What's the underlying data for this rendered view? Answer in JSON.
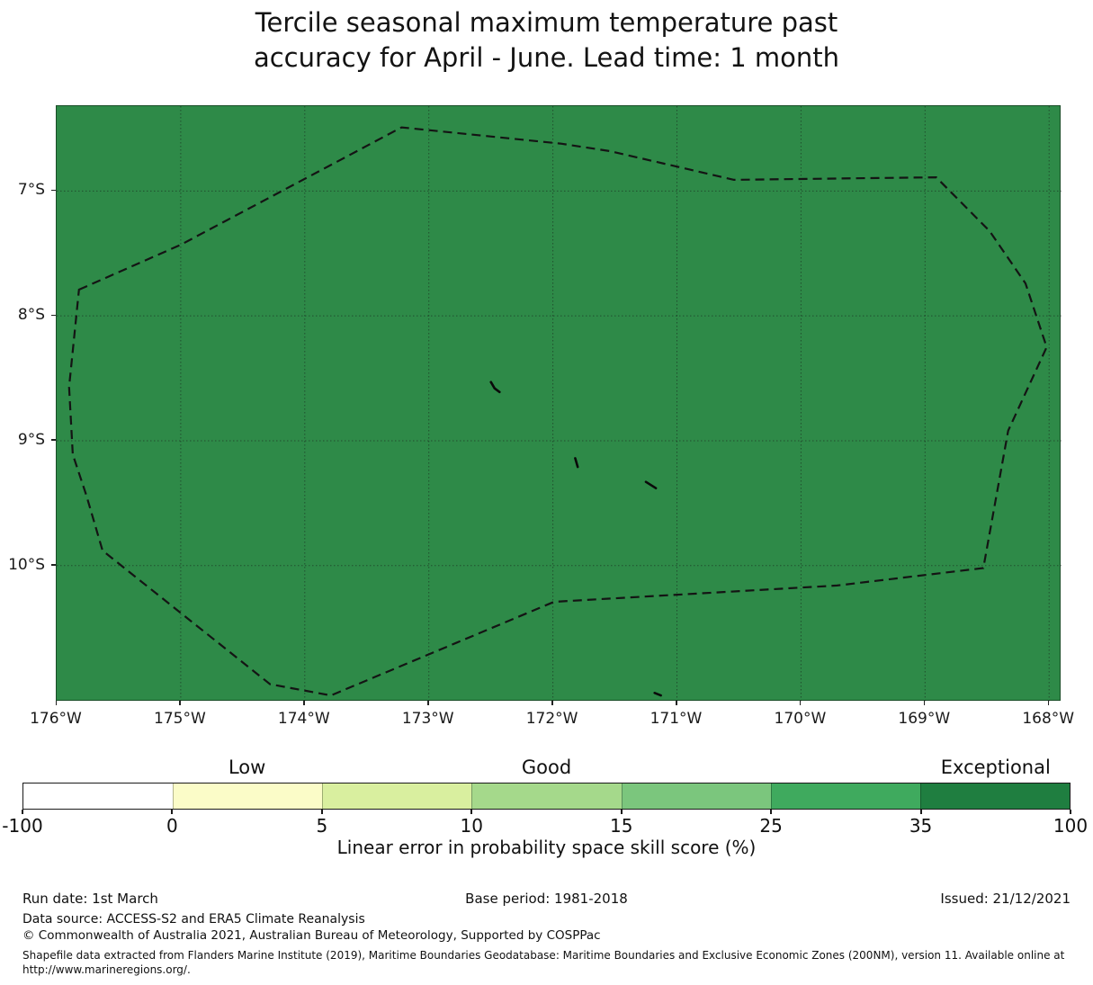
{
  "title": {
    "lines": [
      "Tercile seasonal maximum temperature past",
      "accuracy for April - June. Lead time: 1 month"
    ]
  },
  "map": {
    "fill_color": "#2e8a48",
    "grid_color": "rgba(20,20,20,0.5)",
    "boundary_color": "#141414",
    "axes": {
      "lon_range_w": [
        176.0,
        167.9
      ],
      "lat_range_s": [
        6.32,
        11.09
      ],
      "lon_ticks_w": [
        176,
        175,
        174,
        173,
        172,
        171,
        170,
        169,
        168
      ],
      "lat_ticks_s": [
        7,
        8,
        9,
        10
      ]
    },
    "x_tick_labels": [
      "176°W",
      "175°W",
      "174°W",
      "173°W",
      "172°W",
      "171°W",
      "170°W",
      "169°W",
      "168°W"
    ],
    "y_tick_labels": [
      "7°S",
      "8°S",
      "9°S",
      "10°S"
    ],
    "eez_boundary_lonlat_w_s": [
      [
        175.82,
        7.79
      ],
      [
        175.0,
        7.43
      ],
      [
        173.22,
        6.49
      ],
      [
        171.94,
        6.62
      ],
      [
        171.54,
        6.68
      ],
      [
        170.54,
        6.91
      ],
      [
        168.91,
        6.89
      ],
      [
        168.48,
        7.32
      ],
      [
        168.19,
        7.74
      ],
      [
        168.02,
        8.25
      ],
      [
        168.33,
        8.92
      ],
      [
        168.53,
        10.02
      ],
      [
        169.71,
        10.16
      ],
      [
        171.99,
        10.29
      ],
      [
        173.79,
        11.04
      ],
      [
        174.28,
        10.95
      ],
      [
        175.63,
        9.88
      ],
      [
        175.76,
        9.44
      ],
      [
        175.87,
        9.11
      ],
      [
        175.9,
        8.57
      ]
    ],
    "island_marks_lonlat_w_s": [
      [
        [
          172.5,
          8.53
        ],
        [
          172.47,
          8.58
        ],
        [
          172.43,
          8.61
        ]
      ],
      [
        [
          171.82,
          9.14
        ],
        [
          171.8,
          9.21
        ]
      ],
      [
        [
          171.25,
          9.33
        ],
        [
          171.17,
          9.38
        ]
      ],
      [
        [
          171.18,
          11.02
        ],
        [
          171.13,
          11.04
        ]
      ]
    ]
  },
  "colorbar": {
    "tick_labels": [
      "-100",
      "0",
      "5",
      "10",
      "15",
      "25",
      "35",
      "100"
    ],
    "segment_colors": [
      "#ffffff",
      "#fbfcc8",
      "#d9ef9f",
      "#a5d98b",
      "#7bc67d",
      "#3faa5e",
      "#1f7e40"
    ],
    "category_labels": [
      {
        "label": "Low",
        "segment_index": 1
      },
      {
        "label": "Good",
        "segment_index": 3
      },
      {
        "label": "Exceptional",
        "segment_index": 6
      }
    ],
    "caption": "Linear error in probability space skill score (%)"
  },
  "footer": {
    "run_date": "Run date: 1st March",
    "base_period": "Base period: 1981-2018",
    "issued": "Issued: 21/12/2021",
    "data_source": "Data source: ACCESS-S2 and ERA5 Climate Reanalysis",
    "copyright": "© Commonwealth of Australia 2021, Australian Bureau of Meteorology, Supported by COSPPac",
    "shapefile_note": "Shapefile data extracted from Flanders Marine Institute (2019), Maritime Boundaries Geodatabase: Maritime Boundaries and Exclusive Economic Zones (200NM), version 11. Available online at http://www.marineregions.org/."
  },
  "chart_data": {
    "type": "heatmap",
    "title": "Tercile seasonal maximum temperature past accuracy for April - June. Lead time: 1 month",
    "x_ticks": [
      "176°W",
      "175°W",
      "174°W",
      "173°W",
      "172°W",
      "171°W",
      "170°W",
      "169°W",
      "168°W"
    ],
    "y_ticks": [
      "7°S",
      "8°S",
      "9°S",
      "10°S"
    ],
    "colorbar_bins": [
      -100,
      0,
      5,
      10,
      15,
      25,
      35,
      100
    ],
    "colorbar_bin_colors": [
      "#ffffff",
      "#fbfcc8",
      "#d9ef9f",
      "#a5d98b",
      "#7bc67d",
      "#3faa5e",
      "#1f7e40"
    ],
    "colorbar_categories": [
      "Low",
      "Good",
      "Exceptional"
    ],
    "colorbar_label": "Linear error in probability space skill score (%)",
    "region_fill": "uniform green fill across the whole plotted domain",
    "region_fill_color": "#2e8a48"
  }
}
